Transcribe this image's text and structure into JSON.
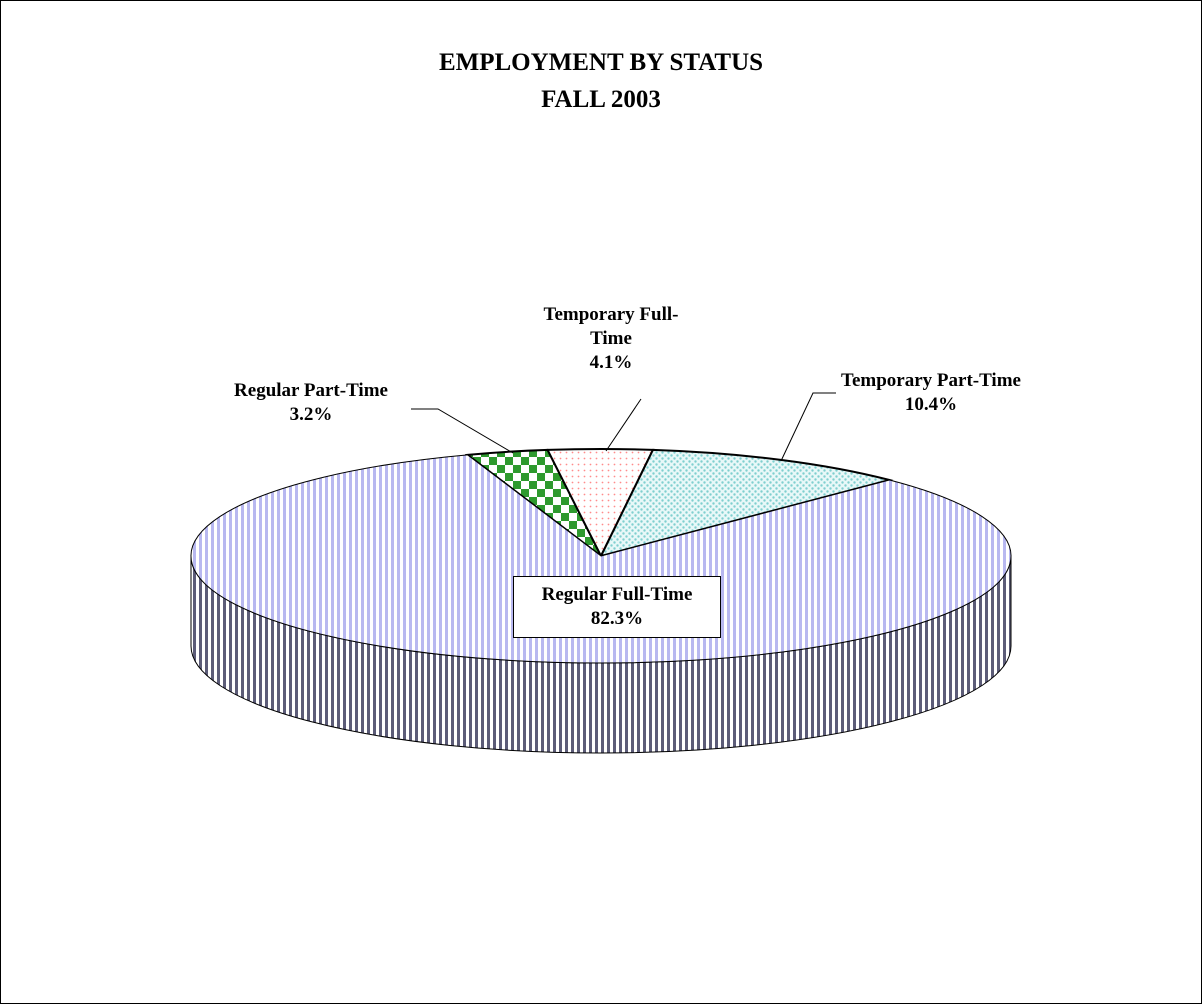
{
  "chart_data": {
    "type": "pie",
    "title": "EMPLOYMENT BY STATUS",
    "subtitle": "FALL 2003",
    "categories": [
      "Regular Part-Time",
      "Temporary Full-Time",
      "Temporary Part-Time",
      "Regular Full-Time"
    ],
    "values": [
      3.2,
      4.1,
      10.4,
      82.3
    ],
    "value_labels": [
      "3.2%",
      "4.1%",
      "10.4%",
      "82.3%"
    ],
    "colors": [
      "#2e9a2e",
      "#ff8c8c",
      "#7fcfcf",
      "#b8b8f0"
    ]
  }
}
